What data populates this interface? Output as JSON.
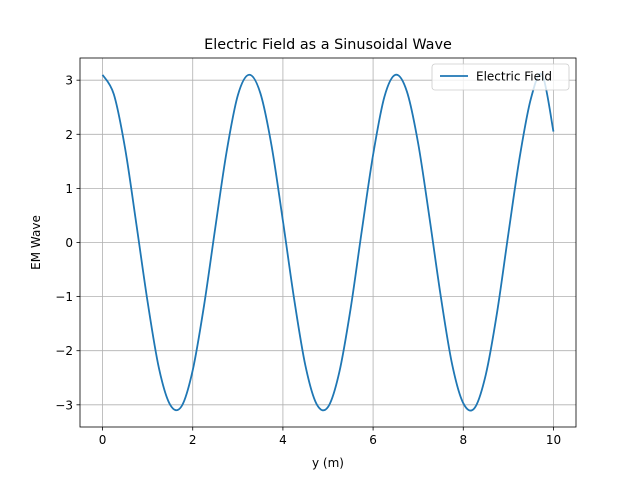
{
  "chart_data": {
    "type": "line",
    "title": "Electric Field as a Sinusoidal Wave",
    "xlabel": "y (m)",
    "ylabel": "EM Wave",
    "xlim": [
      -0.5,
      10.5
    ],
    "ylim": [
      -3.41,
      3.41
    ],
    "xticks": [
      0,
      2,
      4,
      6,
      8,
      10
    ],
    "xtick_labels": [
      "0",
      "2",
      "4",
      "6",
      "8",
      "10"
    ],
    "yticks": [
      -3,
      -2,
      -1,
      0,
      1,
      2,
      3
    ],
    "ytick_labels": [
      "−3",
      "−2",
      "−1",
      "0",
      "1",
      "2",
      "3"
    ],
    "grid": true,
    "legend_position": "upper right",
    "series": [
      {
        "name": "Electric Field",
        "color": "#1f77b4",
        "x": [
          0,
          0.25,
          0.5,
          0.75,
          1,
          1.25,
          1.5,
          1.75,
          2,
          2.25,
          2.5,
          2.75,
          3,
          3.25,
          3.5,
          3.75,
          4,
          4.25,
          4.5,
          4.75,
          5,
          5.25,
          5.5,
          5.75,
          6,
          6.25,
          6.5,
          6.75,
          7,
          7.25,
          7.5,
          7.75,
          8,
          8.25,
          8.5,
          8.75,
          9,
          9.25,
          9.5,
          9.75,
          10
        ],
        "y": [
          3.1,
          2.74,
          1.74,
          0.34,
          -1.1,
          -2.32,
          -3.0,
          -3.03,
          -2.36,
          -1.17,
          0.27,
          1.67,
          2.72,
          3.1,
          2.76,
          1.78,
          0.4,
          -1.05,
          -2.28,
          -2.99,
          -3.04,
          -2.4,
          -1.23,
          0.22,
          1.62,
          2.69,
          3.1,
          2.79,
          1.83,
          0.46,
          -0.99,
          -2.24,
          -2.97,
          -3.06,
          -2.44,
          -1.29,
          0.16,
          1.57,
          2.66,
          3.1,
          2.05
        ]
      }
    ]
  }
}
